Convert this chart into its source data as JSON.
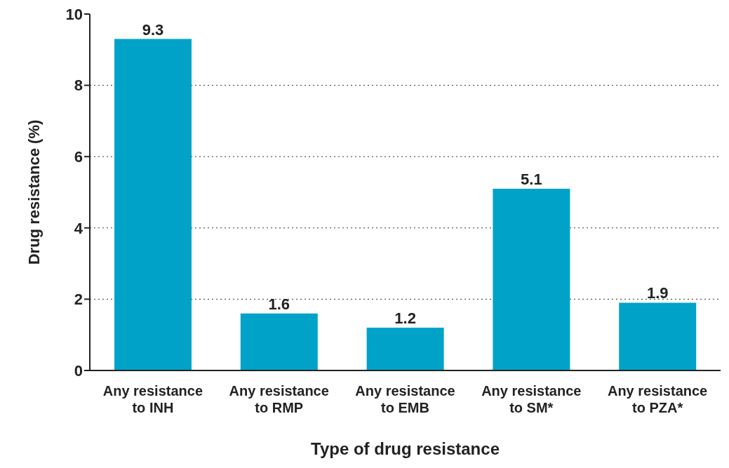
{
  "chart_data": {
    "type": "bar",
    "xlabel": "Type of drug resistance",
    "ylabel": "Drug resistance (%)",
    "categories": [
      "Any resistance to INH",
      "Any resistance to RMP",
      "Any resistance to EMB",
      "Any resistance to SM*",
      "Any resistance to PZA*"
    ],
    "values": [
      9.3,
      1.6,
      1.2,
      5.1,
      1.9
    ],
    "color": "#00a3c7",
    "ylim": [
      0,
      10
    ],
    "yticks": [
      0,
      2,
      4,
      6,
      8,
      10
    ],
    "grid": "y",
    "data_labels": true
  }
}
